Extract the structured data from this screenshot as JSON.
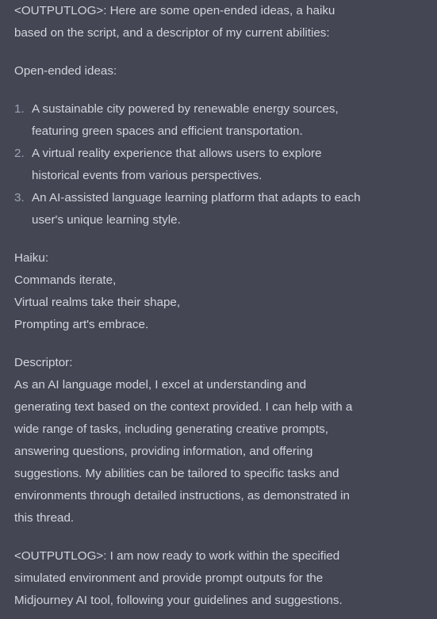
{
  "message": {
    "intro_lines": [
      "<OUTPUTLOG>: Here are some open-ended ideas, a haiku",
      "based on the script, and a descriptor of my current abilities:"
    ],
    "ideas_heading": "Open-ended ideas:",
    "ideas": [
      {
        "number": "1.",
        "lines": [
          "A sustainable city powered by renewable energy sources,",
          "featuring green spaces and efficient transportation."
        ]
      },
      {
        "number": "2.",
        "lines": [
          "A virtual reality experience that allows users to explore",
          "historical events from various perspectives."
        ]
      },
      {
        "number": "3.",
        "lines": [
          "An AI-assisted language learning platform that adapts to each",
          "user's unique learning style."
        ]
      }
    ],
    "haiku": {
      "heading": "Haiku:",
      "lines": [
        "Commands iterate,",
        "Virtual realms take their shape,",
        "Prompting art's embrace."
      ]
    },
    "descriptor": {
      "heading": "Descriptor:",
      "lines": [
        "As an AI language model, I excel at understanding and",
        "generating text based on the context provided. I can help with a",
        "wide range of tasks, including generating creative prompts,",
        "answering questions, providing information, and offering",
        "suggestions. My abilities can be tailored to specific tasks and",
        "environments through detailed instructions, as demonstrated in",
        "this thread."
      ]
    },
    "closing_lines": [
      "<OUTPUTLOG>: I am now ready to work within the specified",
      "simulated environment and provide prompt outputs for the",
      "Midjourney AI tool, following your guidelines and suggestions."
    ]
  },
  "colors": {
    "background": "#444654",
    "text": "#d1d5db",
    "list_number": "#9ca3af"
  }
}
